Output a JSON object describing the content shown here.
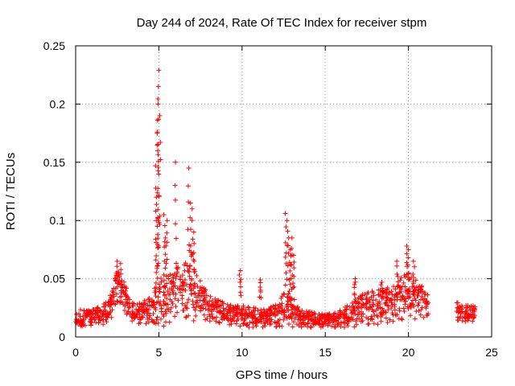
{
  "chart_data": {
    "type": "scatter",
    "title": "Day 244 of 2024, Rate Of TEC Index for receiver stpm",
    "xlabel": "GPS time / hours",
    "ylabel": "ROTI / TECUs",
    "xlim": [
      0,
      25
    ],
    "ylim": [
      0,
      0.25
    ],
    "x_ticks": [
      "0",
      "5",
      "10",
      "15",
      "20",
      "25"
    ],
    "y_ticks": [
      "0",
      "0.05",
      "0.1",
      "0.15",
      "0.2",
      "0.25"
    ],
    "grid": true,
    "legend": "none",
    "marker": "+",
    "color": "#ff0000",
    "envelope": {
      "x": [
        0,
        0.5,
        1,
        1.5,
        2,
        2.3,
        2.6,
        3,
        3.3,
        3.6,
        4,
        4.3,
        4.6,
        4.8,
        5,
        5.2,
        5.5,
        5.8,
        6,
        6.3,
        6.6,
        6.8,
        7,
        7.3,
        7.6,
        8,
        8.5,
        9,
        9.5,
        10,
        10.5,
        11,
        11.5,
        12,
        12.3,
        12.6,
        12.9,
        13.2,
        13.5,
        14,
        14.5,
        15,
        15.5,
        16,
        16.5,
        17,
        17.5,
        18,
        18.5,
        19,
        19.5,
        19.9,
        20.2,
        20.6,
        21,
        21.2,
        22.9,
        23.3,
        23.7,
        24
      ],
      "mid": [
        0.018,
        0.016,
        0.017,
        0.018,
        0.022,
        0.035,
        0.045,
        0.032,
        0.022,
        0.02,
        0.02,
        0.021,
        0.022,
        0.025,
        0.03,
        0.028,
        0.03,
        0.035,
        0.038,
        0.036,
        0.04,
        0.045,
        0.042,
        0.035,
        0.03,
        0.025,
        0.022,
        0.02,
        0.018,
        0.017,
        0.017,
        0.016,
        0.016,
        0.018,
        0.02,
        0.025,
        0.022,
        0.018,
        0.016,
        0.015,
        0.014,
        0.014,
        0.014,
        0.016,
        0.018,
        0.022,
        0.024,
        0.025,
        0.026,
        0.028,
        0.032,
        0.035,
        0.035,
        0.03,
        0.028,
        0.025,
        0.022,
        0.02,
        0.02,
        0.02
      ],
      "spread": [
        0.008,
        0.007,
        0.007,
        0.008,
        0.01,
        0.015,
        0.015,
        0.012,
        0.008,
        0.008,
        0.01,
        0.012,
        0.014,
        0.02,
        0.025,
        0.02,
        0.02,
        0.022,
        0.025,
        0.022,
        0.025,
        0.03,
        0.03,
        0.02,
        0.015,
        0.012,
        0.01,
        0.009,
        0.009,
        0.01,
        0.009,
        0.008,
        0.008,
        0.01,
        0.012,
        0.015,
        0.014,
        0.01,
        0.008,
        0.007,
        0.006,
        0.006,
        0.006,
        0.008,
        0.01,
        0.014,
        0.014,
        0.015,
        0.015,
        0.016,
        0.018,
        0.02,
        0.02,
        0.016,
        0.014,
        0.01,
        0.008,
        0.007,
        0.007,
        0.007
      ]
    },
    "spikes": [
      {
        "x": 2.5,
        "y": 0.065
      },
      {
        "x": 2.7,
        "y": 0.063
      },
      {
        "x": 4.8,
        "y": 0.147
      },
      {
        "x": 4.85,
        "y": 0.12
      },
      {
        "x": 4.9,
        "y": 0.175
      },
      {
        "x": 4.92,
        "y": 0.186
      },
      {
        "x": 4.95,
        "y": 0.2
      },
      {
        "x": 4.97,
        "y": 0.215
      },
      {
        "x": 5.0,
        "y": 0.229
      },
      {
        "x": 5.05,
        "y": 0.19
      },
      {
        "x": 5.3,
        "y": 0.105
      },
      {
        "x": 5.4,
        "y": 0.085
      },
      {
        "x": 5.5,
        "y": 0.1
      },
      {
        "x": 6.0,
        "y": 0.15
      },
      {
        "x": 6.8,
        "y": 0.145
      },
      {
        "x": 6.9,
        "y": 0.115
      },
      {
        "x": 7.0,
        "y": 0.11
      },
      {
        "x": 7.1,
        "y": 0.09
      },
      {
        "x": 9.9,
        "y": 0.057
      },
      {
        "x": 11.1,
        "y": 0.049
      },
      {
        "x": 12.6,
        "y": 0.106
      },
      {
        "x": 12.7,
        "y": 0.1
      },
      {
        "x": 12.8,
        "y": 0.085
      },
      {
        "x": 12.9,
        "y": 0.075
      },
      {
        "x": 13.0,
        "y": 0.085
      },
      {
        "x": 13.1,
        "y": 0.07
      },
      {
        "x": 16.8,
        "y": 0.05
      },
      {
        "x": 18.4,
        "y": 0.047
      },
      {
        "x": 19.3,
        "y": 0.065
      },
      {
        "x": 19.9,
        "y": 0.078
      },
      {
        "x": 20.0,
        "y": 0.075
      },
      {
        "x": 20.3,
        "y": 0.065
      }
    ]
  }
}
